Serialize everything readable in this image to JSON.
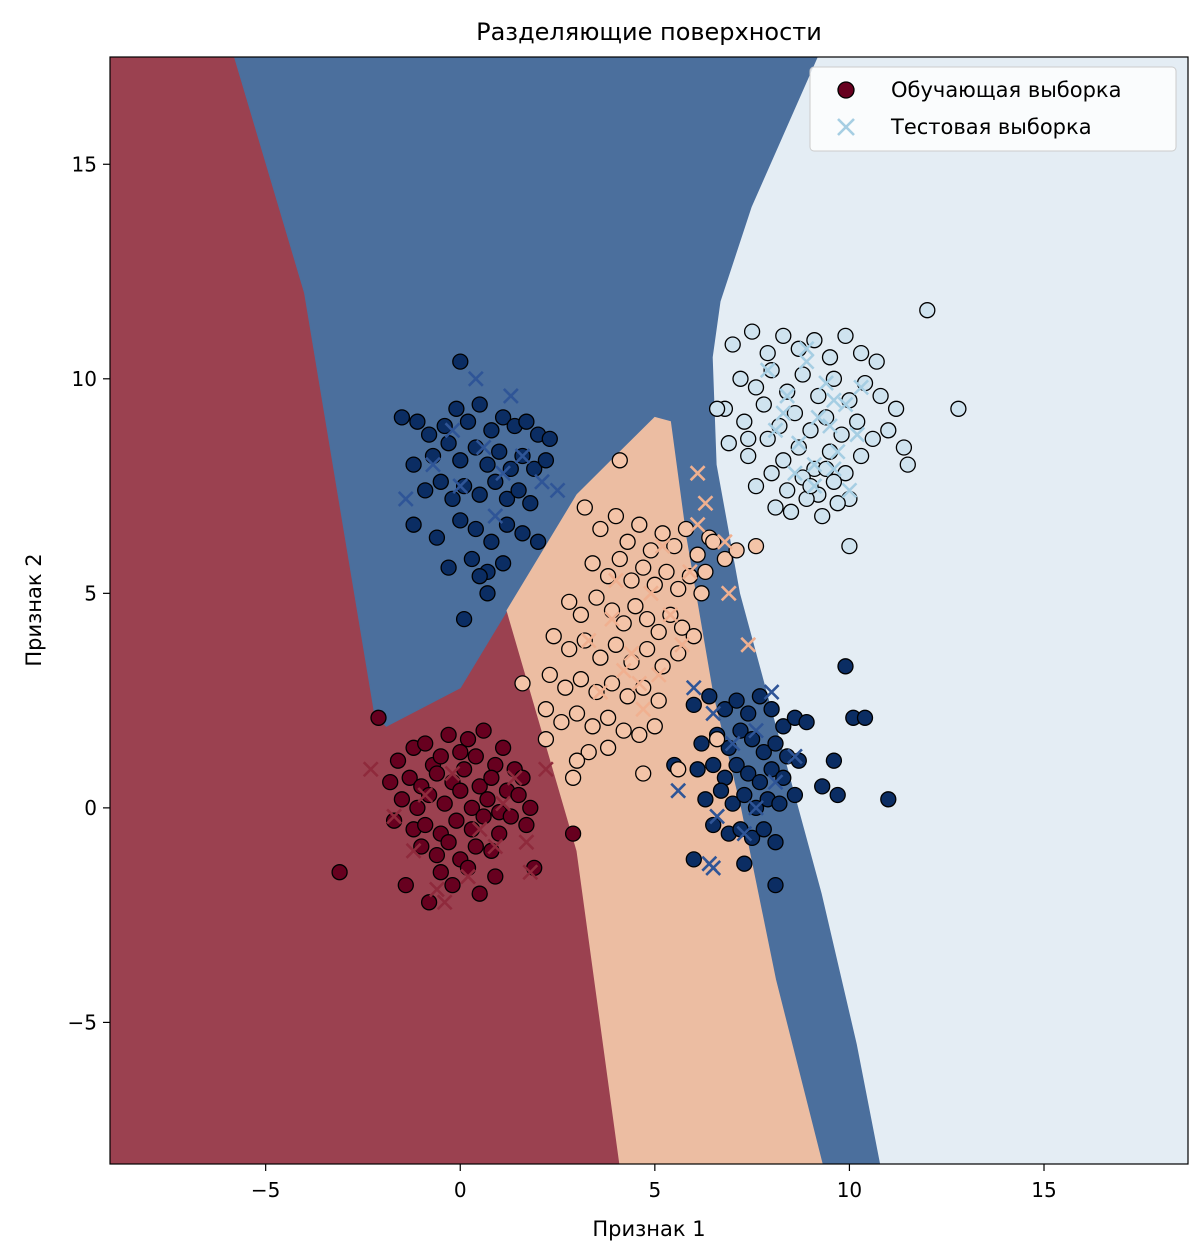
{
  "chart_data": {
    "type": "scatter",
    "title": "Разделяющие поверхности",
    "xlabel": "Признак 1",
    "ylabel": "Признак 2",
    "xlim": [
      -9,
      18.7
    ],
    "ylim": [
      -8.3,
      17.5
    ],
    "xticks": [
      -5,
      0,
      5,
      10,
      15
    ],
    "yticks": [
      -5,
      0,
      5,
      10,
      15
    ],
    "xtick_labels": [
      "−5",
      "0",
      "5",
      "10",
      "15"
    ],
    "ytick_labels": [
      "−5",
      "0",
      "5",
      "10",
      "15"
    ],
    "grid": false,
    "legend": {
      "placement": "top-right",
      "entries": [
        {
          "label": "Обучающая выборка",
          "marker": "circle",
          "color": "#67001f"
        },
        {
          "label": "Тестовая выборка",
          "marker": "x",
          "color": "#a6cee3"
        }
      ]
    },
    "decision_regions": [
      {
        "class": 0,
        "color": "#9b4150",
        "polygon": [
          [
            -9,
            17.5
          ],
          [
            -5.8,
            17.5
          ],
          [
            -4,
            12
          ],
          [
            -2.2,
            2.2
          ],
          [
            -1.9,
            1.9
          ],
          [
            0,
            2.8
          ],
          [
            1.2,
            4.6
          ],
          [
            1.2,
            4.6
          ],
          [
            3.0,
            -1.0
          ],
          [
            4.1,
            -8.3
          ],
          [
            -9,
            -8.3
          ]
        ]
      },
      {
        "class": 1,
        "color": "#4b6f9d",
        "polygon": [
          [
            -5.8,
            17.5
          ],
          [
            9.2,
            17.5
          ],
          [
            7.5,
            14
          ],
          [
            6.7,
            11.8
          ],
          [
            6.5,
            10.5
          ],
          [
            6.6,
            8.0
          ],
          [
            7.2,
            5.0
          ],
          [
            7.8,
            3.0
          ],
          [
            8.4,
            1.0
          ],
          [
            9.3,
            -2.0
          ],
          [
            10.2,
            -5.5
          ],
          [
            10.8,
            -8.3
          ],
          [
            9.3,
            -8.3
          ],
          [
            8.1,
            -4.0
          ],
          [
            7.2,
            0.0
          ],
          [
            6.5,
            2.6
          ],
          [
            5.8,
            6.3
          ],
          [
            5.4,
            9.0
          ],
          [
            5.0,
            9.1
          ],
          [
            4.0,
            8.2
          ],
          [
            3.0,
            7.3
          ],
          [
            1.2,
            4.6
          ],
          [
            0,
            2.8
          ],
          [
            -1.9,
            1.9
          ],
          [
            -2.2,
            2.2
          ],
          [
            -4,
            12
          ]
        ]
      },
      {
        "class": 2,
        "color": "#ecbda2",
        "polygon": [
          [
            1.2,
            4.6
          ],
          [
            3.0,
            7.3
          ],
          [
            4.0,
            8.2
          ],
          [
            5.0,
            9.1
          ],
          [
            5.4,
            9.0
          ],
          [
            5.8,
            6.3
          ],
          [
            6.5,
            2.6
          ],
          [
            7.2,
            0.0
          ],
          [
            8.1,
            -4.0
          ],
          [
            9.3,
            -8.3
          ],
          [
            4.1,
            -8.3
          ],
          [
            3.0,
            -1.0
          ]
        ]
      },
      {
        "class": 3,
        "color": "#e4edf4",
        "polygon": [
          [
            9.2,
            17.5
          ],
          [
            18.7,
            17.5
          ],
          [
            18.7,
            -8.3
          ],
          [
            10.8,
            -8.3
          ],
          [
            10.2,
            -5.5
          ],
          [
            9.3,
            -2.0
          ],
          [
            8.4,
            1.0
          ],
          [
            7.8,
            3.0
          ],
          [
            7.2,
            5.0
          ],
          [
            6.6,
            8.0
          ],
          [
            6.5,
            10.5
          ],
          [
            6.7,
            11.8
          ],
          [
            7.5,
            14
          ]
        ]
      }
    ],
    "series": [
      {
        "name": "Обучающая выборка",
        "class": 0,
        "marker": "circle",
        "color": "#67001f",
        "x": [
          -2.1,
          -1.6,
          -1.2,
          -0.9,
          -0.7,
          -0.5,
          -0.3,
          0.0,
          0.2,
          0.4,
          0.6,
          0.9,
          1.1,
          1.4,
          1.6,
          -1.8,
          -1.3,
          -1.0,
          -0.6,
          -0.2,
          0.1,
          0.5,
          0.8,
          1.2,
          1.5,
          1.8,
          -1.5,
          -1.1,
          -0.8,
          -0.4,
          0.0,
          0.3,
          0.7,
          1.0,
          1.3,
          -1.7,
          -1.2,
          -0.9,
          -0.5,
          -0.1,
          0.3,
          0.6,
          1.0,
          -1.0,
          -0.6,
          -0.3,
          0.0,
          0.4,
          0.8,
          -0.5,
          -0.2,
          0.2,
          -3.1,
          2.9,
          1.7,
          -0.8,
          0.5,
          -1.4,
          0.9,
          1.9
        ],
        "y": [
          2.1,
          1.1,
          1.4,
          1.5,
          1.0,
          1.2,
          1.7,
          1.3,
          1.6,
          1.2,
          1.8,
          1.0,
          1.4,
          0.9,
          0.7,
          0.6,
          0.7,
          0.5,
          0.8,
          0.6,
          0.9,
          0.5,
          0.7,
          0.4,
          0.3,
          0.0,
          0.2,
          0.0,
          0.3,
          0.1,
          0.4,
          0.0,
          0.2,
          -0.1,
          -0.2,
          -0.3,
          -0.5,
          -0.4,
          -0.6,
          -0.3,
          -0.5,
          -0.2,
          -0.6,
          -0.9,
          -1.1,
          -0.8,
          -1.2,
          -0.9,
          -1.0,
          -1.5,
          -1.8,
          -1.4,
          -1.5,
          -0.6,
          -0.4,
          -2.2,
          -2.0,
          -1.8,
          -1.6,
          -1.4
        ]
      },
      {
        "name": "Обучающая выборка",
        "class": 1,
        "marker": "circle",
        "color": "#0b2d63",
        "x": [
          -1.5,
          -1.1,
          -0.8,
          -0.4,
          -0.1,
          0.2,
          0.5,
          0.8,
          1.1,
          1.4,
          1.7,
          2.0,
          2.3,
          -1.2,
          -0.7,
          -0.3,
          0.0,
          0.4,
          0.7,
          1.0,
          1.3,
          1.6,
          1.9,
          2.2,
          -0.9,
          -0.5,
          -0.2,
          0.1,
          0.5,
          0.9,
          1.2,
          1.5,
          1.8,
          -1.2,
          -0.6,
          0.0,
          0.4,
          0.8,
          1.2,
          1.6,
          2.0,
          -0.3,
          0.3,
          0.7,
          1.1,
          0.7,
          0.0,
          0.1,
          0.5,
          6.0,
          6.4,
          6.8,
          7.1,
          7.4,
          7.7,
          8.0,
          8.3,
          8.6,
          8.9,
          6.2,
          6.6,
          6.9,
          7.2,
          7.5,
          7.8,
          8.1,
          8.4,
          8.7,
          6.1,
          6.5,
          6.8,
          7.1,
          7.4,
          7.7,
          8.0,
          8.3,
          6.3,
          6.7,
          7.0,
          7.3,
          7.6,
          7.9,
          8.2,
          8.6,
          6.5,
          6.9,
          7.2,
          7.5,
          7.8,
          8.1,
          9.9,
          10.1,
          11.0,
          9.6,
          10.4,
          5.5,
          7.3,
          8.1,
          9.7,
          9.3,
          6.0
        ],
        "y": [
          9.1,
          9.0,
          8.7,
          8.9,
          9.3,
          9.0,
          9.4,
          8.8,
          9.1,
          8.9,
          9.0,
          8.7,
          8.6,
          8.0,
          8.2,
          8.5,
          8.1,
          8.4,
          8.0,
          8.3,
          7.9,
          8.2,
          7.9,
          8.1,
          7.4,
          7.6,
          7.2,
          7.5,
          7.3,
          7.6,
          7.2,
          7.4,
          7.1,
          6.6,
          6.3,
          6.7,
          6.5,
          6.2,
          6.6,
          6.4,
          6.2,
          5.6,
          5.8,
          5.5,
          5.7,
          5.0,
          10.4,
          4.4,
          5.4,
          2.4,
          2.6,
          2.3,
          2.5,
          2.2,
          2.6,
          2.3,
          1.9,
          2.1,
          2.0,
          1.5,
          1.7,
          1.4,
          1.8,
          1.6,
          1.3,
          1.5,
          1.2,
          1.1,
          0.9,
          1.0,
          0.7,
          1.0,
          0.8,
          0.6,
          0.9,
          0.7,
          0.2,
          0.4,
          0.1,
          0.3,
          0.0,
          0.2,
          0.1,
          0.3,
          -0.4,
          -0.6,
          -0.5,
          -0.7,
          -0.5,
          -0.8,
          3.3,
          2.1,
          0.2,
          1.1,
          2.1,
          1.0,
          -1.3,
          -1.8,
          0.3,
          0.5,
          -1.2
        ]
      },
      {
        "name": "Обучающая выборка",
        "class": 2,
        "marker": "circle",
        "color": "#f4c4a8",
        "x": [
          3.2,
          3.6,
          4.0,
          4.3,
          4.6,
          4.9,
          5.2,
          5.5,
          5.8,
          6.1,
          6.4,
          3.4,
          3.8,
          4.1,
          4.4,
          4.7,
          5.0,
          5.3,
          5.6,
          5.9,
          6.2,
          2.8,
          3.1,
          3.5,
          3.9,
          4.2,
          4.5,
          4.8,
          5.1,
          5.4,
          5.7,
          6.0,
          2.4,
          2.8,
          3.2,
          3.6,
          4.0,
          4.4,
          4.8,
          5.2,
          5.6,
          2.3,
          2.7,
          3.1,
          3.5,
          3.9,
          4.3,
          4.7,
          5.1,
          2.2,
          2.6,
          3.0,
          3.4,
          3.8,
          4.2,
          4.6,
          5.0,
          4.1,
          3.3,
          2.9,
          6.5,
          6.8,
          7.1,
          6.3,
          1.6,
          2.2,
          3.0,
          3.8,
          4.7,
          5.6,
          6.6,
          7.6
        ],
        "y": [
          7.0,
          6.5,
          6.8,
          6.2,
          6.6,
          6.0,
          6.4,
          6.1,
          6.5,
          5.9,
          6.3,
          5.7,
          5.4,
          5.8,
          5.3,
          5.6,
          5.2,
          5.5,
          5.1,
          5.4,
          5.0,
          4.8,
          4.5,
          4.9,
          4.6,
          4.3,
          4.7,
          4.4,
          4.1,
          4.5,
          4.2,
          4.0,
          4.0,
          3.7,
          3.9,
          3.5,
          3.8,
          3.4,
          3.7,
          3.3,
          3.6,
          3.1,
          2.8,
          3.0,
          2.7,
          2.9,
          2.6,
          2.8,
          2.5,
          2.3,
          2.0,
          2.2,
          1.9,
          2.1,
          1.8,
          1.7,
          1.9,
          8.1,
          1.3,
          0.7,
          6.2,
          5.8,
          6.0,
          5.5,
          2.9,
          1.6,
          1.1,
          1.4,
          0.8,
          0.9,
          1.6,
          6.1
        ]
      },
      {
        "name": "Обучающая выборка",
        "class": 3,
        "marker": "circle",
        "color": "#cfe3ef",
        "x": [
          7.0,
          7.5,
          7.9,
          8.3,
          8.7,
          9.1,
          9.5,
          9.9,
          10.3,
          10.7,
          7.2,
          7.6,
          8.0,
          8.4,
          8.8,
          9.2,
          9.6,
          10.0,
          10.4,
          10.8,
          6.8,
          7.3,
          7.8,
          8.2,
          8.6,
          9.0,
          9.4,
          9.8,
          10.2,
          10.6,
          11.0,
          6.9,
          7.4,
          7.9,
          8.3,
          8.7,
          9.1,
          9.5,
          9.9,
          10.3,
          7.6,
          8.0,
          8.4,
          8.8,
          9.2,
          9.6,
          10.0,
          8.1,
          8.5,
          8.9,
          9.3,
          9.7,
          11.2,
          11.5,
          12.0,
          12.8,
          10.0,
          9.0,
          6.6,
          7.4,
          11.4,
          9.4
        ],
        "y": [
          10.8,
          11.1,
          10.6,
          11.0,
          10.7,
          10.9,
          10.5,
          11.0,
          10.6,
          10.4,
          10.0,
          9.8,
          10.2,
          9.7,
          10.1,
          9.6,
          10.0,
          9.5,
          9.9,
          9.6,
          9.3,
          9.0,
          9.4,
          8.9,
          9.2,
          8.8,
          9.1,
          8.7,
          9.0,
          8.6,
          8.8,
          8.5,
          8.2,
          8.6,
          8.1,
          8.4,
          7.9,
          8.3,
          7.8,
          8.2,
          7.5,
          7.8,
          7.4,
          7.7,
          7.3,
          7.6,
          7.2,
          7.0,
          6.9,
          7.2,
          6.8,
          7.1,
          9.3,
          8.0,
          11.6,
          9.3,
          6.1,
          7.5,
          9.3,
          8.6,
          8.4,
          7.9
        ]
      },
      {
        "name": "Тестовая выборка",
        "class": 0,
        "marker": "x",
        "color": "#8f2a3c",
        "x": [
          -2.3,
          -1.7,
          -0.9,
          -0.2,
          0.5,
          1.1,
          1.8,
          2.2,
          -1.2,
          0.9,
          1.7,
          0.2,
          -0.6,
          1.4,
          -0.4
        ],
        "y": [
          0.9,
          -0.2,
          0.3,
          0.8,
          -0.5,
          0.1,
          -1.5,
          0.9,
          -1.0,
          -0.9,
          -0.8,
          -1.6,
          -1.9,
          0.7,
          -2.2
        ]
      },
      {
        "name": "Тестовая выборка",
        "class": 1,
        "marker": "x",
        "color": "#2f5597",
        "x": [
          -1.4,
          -0.7,
          0.0,
          0.6,
          1.1,
          1.6,
          2.1,
          0.4,
          1.3,
          -0.2,
          0.9,
          2.5,
          6.0,
          6.5,
          7.0,
          7.6,
          8.1,
          8.6,
          5.6,
          6.6,
          7.3,
          8.0,
          6.4,
          7.6,
          6.5
        ],
        "y": [
          7.2,
          8.0,
          7.5,
          8.4,
          7.8,
          8.2,
          7.6,
          10.0,
          9.6,
          8.8,
          6.8,
          7.4,
          2.8,
          2.2,
          1.5,
          1.8,
          0.6,
          1.2,
          0.4,
          -0.2,
          -0.6,
          2.7,
          -1.3,
          0.0,
          -1.4
        ]
      },
      {
        "name": "Тестовая выборка",
        "class": 2,
        "marker": "x",
        "color": "#f0b090",
        "x": [
          3.3,
          3.9,
          4.4,
          4.9,
          5.4,
          5.9,
          6.3,
          6.8,
          3.6,
          4.2,
          4.7,
          5.2,
          5.7,
          6.1,
          4.0,
          4.6,
          5.1,
          7.4,
          6.1,
          6.9
        ],
        "y": [
          3.9,
          4.4,
          3.6,
          5.0,
          4.5,
          5.5,
          7.1,
          6.2,
          2.7,
          3.2,
          2.3,
          6.1,
          3.8,
          7.8,
          5.3,
          2.9,
          3.1,
          3.8,
          6.6,
          5.0
        ]
      },
      {
        "name": "Тестовая выборка",
        "class": 3,
        "marker": "x",
        "color": "#a6cee3",
        "x": [
          7.9,
          8.4,
          8.9,
          9.4,
          9.9,
          10.3,
          8.1,
          8.7,
          9.2,
          9.7,
          10.2,
          8.6,
          9.1,
          9.6,
          8.3,
          8.9,
          9.5,
          10.0,
          9.1,
          9.6
        ],
        "y": [
          10.2,
          9.6,
          10.4,
          9.9,
          9.4,
          9.8,
          8.8,
          8.5,
          9.1,
          8.3,
          8.7,
          7.8,
          7.5,
          7.9,
          9.2,
          10.7,
          8.9,
          7.4,
          8.0,
          9.5
        ]
      }
    ]
  }
}
